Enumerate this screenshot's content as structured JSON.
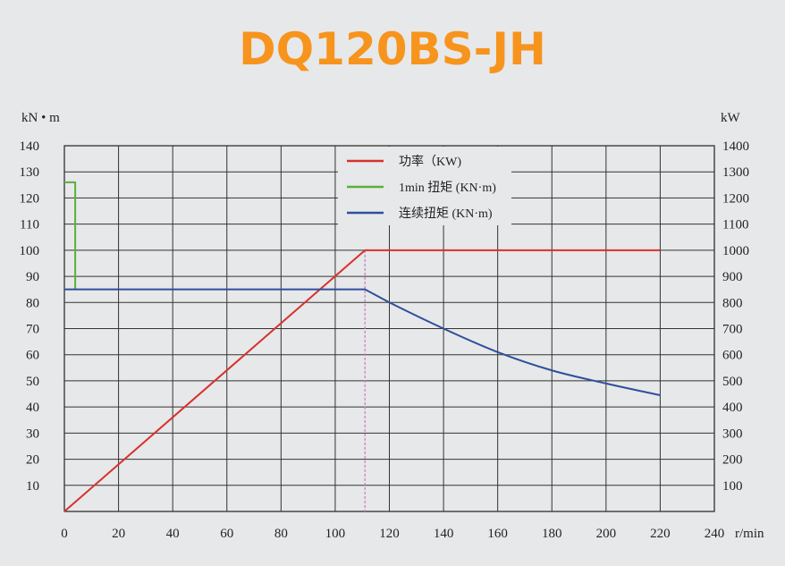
{
  "title": "DQ120BS-JH",
  "chart_data": {
    "type": "line",
    "title": "DQ120BS-JH",
    "ylabel_left": "kN • m",
    "ylabel_right": "kW",
    "xlabel": "r/min",
    "xlim": [
      0,
      240
    ],
    "ylim_left": [
      0,
      140
    ],
    "ylim_right": [
      0,
      1400
    ],
    "x_ticks": [
      "0",
      "20",
      "40",
      "60",
      "80",
      "100",
      "120",
      "140",
      "160",
      "180",
      "200",
      "220",
      "240"
    ],
    "y_ticks_left": [
      "10",
      "20",
      "30",
      "40",
      "50",
      "60",
      "70",
      "80",
      "90",
      "100",
      "110",
      "120",
      "130",
      "140"
    ],
    "y_ticks_right": [
      "100",
      "200",
      "300",
      "400",
      "500",
      "600",
      "700",
      "800",
      "900",
      "1000",
      "1100",
      "1200",
      "1300",
      "1400"
    ],
    "grid": true,
    "legend_position": "top-center",
    "series": [
      {
        "name": "功率（KW)",
        "color": "#d7312e",
        "axis": "right",
        "points": [
          [
            0,
            0
          ],
          [
            111,
            1000
          ],
          [
            220,
            1000
          ]
        ]
      },
      {
        "name": "1min 扭矩 (KN·m)",
        "color": "#5aaf3c",
        "axis": "left",
        "points": [
          [
            0,
            126
          ],
          [
            4,
            126
          ],
          [
            4,
            85
          ]
        ]
      },
      {
        "name": "连续扭矩 (KN·m)",
        "color": "#2f4f9c",
        "axis": "left",
        "points": [
          [
            0,
            85
          ],
          [
            111,
            85
          ],
          [
            120,
            80
          ],
          [
            140,
            70
          ],
          [
            160,
            61
          ],
          [
            180,
            54
          ],
          [
            200,
            49
          ],
          [
            220,
            44.5
          ]
        ]
      }
    ],
    "annotations": [
      {
        "type": "vertical-line",
        "x": 111,
        "color": "#c77fd0",
        "style": "dashed"
      }
    ]
  }
}
